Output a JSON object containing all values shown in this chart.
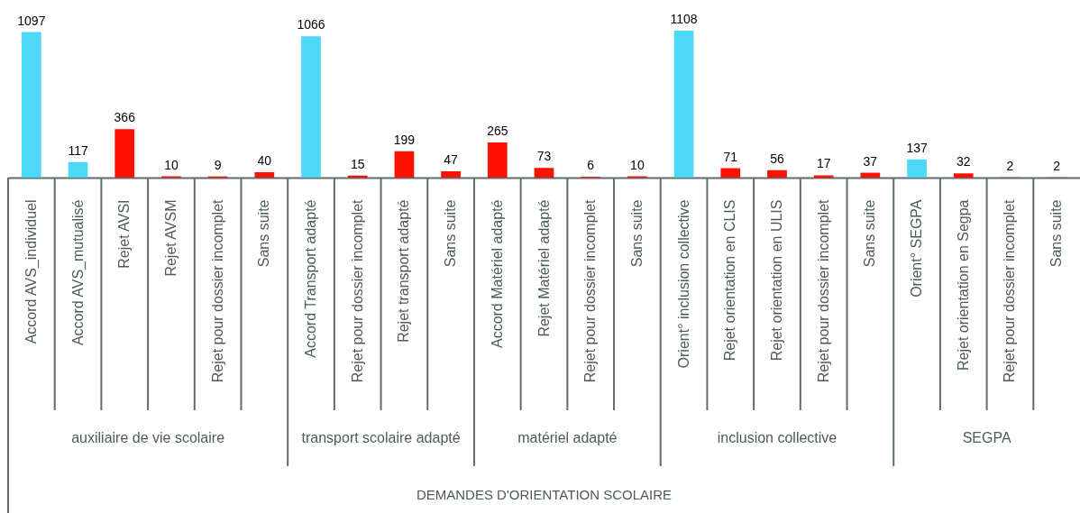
{
  "chart_data": {
    "type": "bar",
    "categories": [
      "Accord AVS_individuel",
      "Accord AVS_mutualisé",
      "Rejet AVSI",
      "Rejet AVSM",
      "Rejet pour dossier incomplet",
      "Sans suite",
      "Accord Transport adapté",
      "Rejet pour dossier incomplet",
      "Rejet transport adapté",
      "Sans suite",
      "Accord Matériel adapté",
      "Rejet Matériel adapté",
      "Rejet pour dossier incomplet",
      "Sans suite",
      "Orient° inclusion collective",
      "Rejet orientation en CLIS",
      "Rejet orientation en ULIS",
      "Rejet pour dossier incomplet",
      "Sans suite",
      "Orient° SEGPA",
      "Rejet orientation en Segpa",
      "Rejet pour dossier incomplet",
      "Sans suite"
    ],
    "values": [
      1097,
      117,
      366,
      10,
      9,
      40,
      1066,
      15,
      199,
      47,
      265,
      73,
      6,
      10,
      1108,
      71,
      56,
      17,
      37,
      137,
      32,
      2,
      2
    ],
    "colors": [
      "#4dd8f8",
      "#4dd8f8",
      "#ff1100",
      "#ff1100",
      "#ff1100",
      "#ff1100",
      "#4dd8f8",
      "#ff1100",
      "#ff1100",
      "#ff1100",
      "#ff1100",
      "#ff1100",
      "#ff1100",
      "#ff1100",
      "#4dd8f8",
      "#ff1100",
      "#ff1100",
      "#ff1100",
      "#ff1100",
      "#4dd8f8",
      "#ff1100",
      "#ff1100",
      "#ff1100"
    ],
    "annotations": [
      "auxiliaire de vie scolaire",
      "transport scolaire adapté",
      "matériel adapté",
      "inclusion collective",
      "SEGPA",
      "DEMANDES D'ORIENTATION SCOLAIRE"
    ],
    "data_labels": true,
    "tick_labels": "x"
  }
}
